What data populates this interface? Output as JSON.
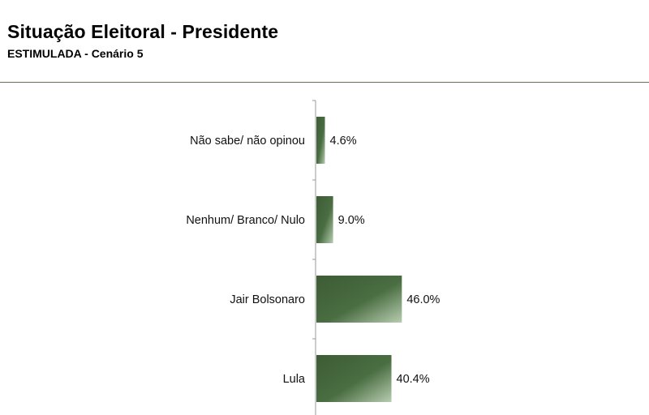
{
  "header": {
    "title": "Situação Eleitoral - Presidente",
    "subtitle": "ESTIMULADA - Cenário 5"
  },
  "colors": {
    "bar_dark": "#3d5c35",
    "bar_light": "#b7cdb0",
    "axis": "#9a9a9a",
    "rule": "#6b7057"
  },
  "chart_data": {
    "type": "bar",
    "orientation": "horizontal",
    "categories": [
      "Não sabe/ não opinou",
      "Nenhum/ Branco/ Nulo",
      "Jair Bolsonaro",
      "Lula"
    ],
    "values": [
      4.6,
      9.0,
      46.0,
      40.4
    ],
    "value_labels": [
      "4.6%",
      "9.0%",
      "46.0%",
      "40.4%"
    ],
    "unit": "%",
    "grid": false,
    "legend": "none"
  }
}
